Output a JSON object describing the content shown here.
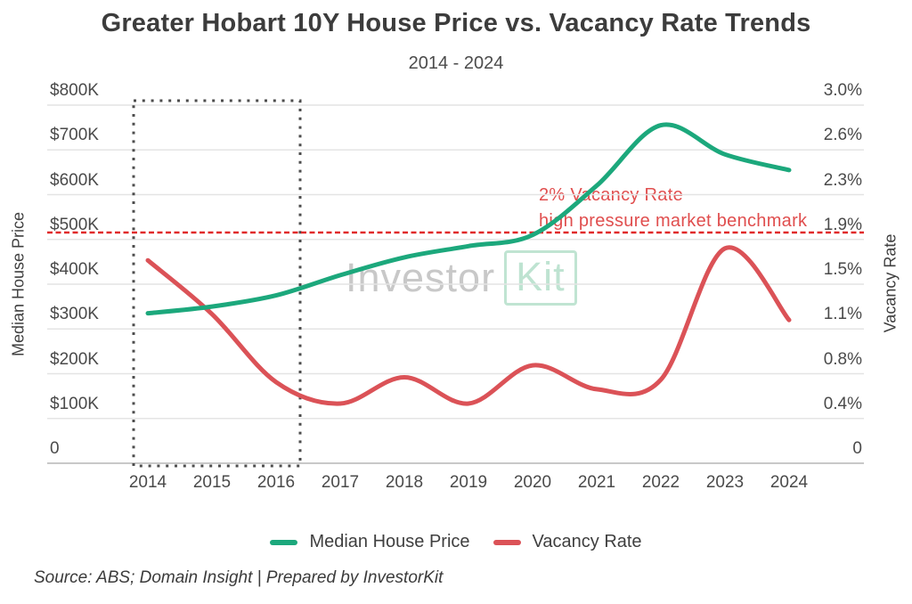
{
  "title": "Greater Hobart 10Y House Price vs. Vacancy Rate Trends",
  "subtitle": "2014 - 2024",
  "watermark": {
    "text_gray": "Investor",
    "text_green": "Kit"
  },
  "annotation": {
    "line1": "2% Vacancy Rate",
    "line2": "high pressure market benchmark"
  },
  "legend": [
    {
      "label": "Median House Price",
      "color": "#1ca87c"
    },
    {
      "label": "Vacancy Rate",
      "color": "#db5257"
    }
  ],
  "source_note": "Source: ABS; Domain Insight | Prepared by InvestorKit",
  "colors": {
    "price_line": "#1ca87c",
    "vacancy_line": "#db5257",
    "benchmark_line": "#e02a2a",
    "gridline": "#e4e4e4",
    "axis_line": "#c8c8c8",
    "highlight_box": "#4d4d4d",
    "title_text": "#3c3c3c",
    "annotation_text": "#e04e4e"
  },
  "chart_data": {
    "type": "line",
    "title": "Greater Hobart 10Y House Price vs. Vacancy Rate Trends",
    "subtitle": "2014 - 2024",
    "x": [
      2014,
      2015,
      2016,
      2017,
      2018,
      2019,
      2020,
      2021,
      2022,
      2023,
      2024
    ],
    "x_tick_labels": [
      "2014",
      "2015",
      "2016",
      "2017",
      "2018",
      "2019",
      "2020",
      "2021",
      "2022",
      "2023",
      "2024"
    ],
    "left_axis": {
      "label": "Median House Price",
      "unit": "AUD",
      "range_thousands": [
        0,
        800
      ],
      "tick_labels_top_to_bottom": [
        "$800K",
        "$700K",
        "$600K",
        "$500K",
        "$400K",
        "$300K",
        "$200K",
        "$100K",
        "0"
      ]
    },
    "right_axis": {
      "label": "Vacancy Rate",
      "unit": "percent",
      "range_pct": [
        0,
        3.0
      ],
      "tick_labels_top_to_bottom": [
        "3.0%",
        "2.6%",
        "2.3%",
        "1.9%",
        "1.5%",
        "1.1%",
        "0.8%",
        "0.4%",
        "0"
      ]
    },
    "series": [
      {
        "name": "Median House Price",
        "axis": "left",
        "color": "#1ca87c",
        "unit": "AUD thousands",
        "values": [
          335,
          350,
          375,
          420,
          460,
          485,
          510,
          620,
          755,
          690,
          655
        ]
      },
      {
        "name": "Vacancy Rate",
        "axis": "right",
        "color": "#db5257",
        "unit": "percent",
        "values": [
          1.7,
          1.25,
          0.68,
          0.5,
          0.72,
          0.5,
          0.82,
          0.62,
          0.7,
          1.8,
          1.2
        ]
      }
    ],
    "benchmark_line": {
      "value_pct": 2.0,
      "label_line1": "2% Vacancy Rate",
      "label_line2": "high pressure market benchmark",
      "style": "dashed",
      "color": "#e02a2a"
    },
    "highlight_box": {
      "x_start": 2014,
      "x_end": 2016.4,
      "style": "dotted",
      "covers_years": [
        "2014",
        "2015",
        "2016"
      ]
    },
    "grid": true,
    "legend_position": "bottom",
    "smoothing": "spline"
  }
}
